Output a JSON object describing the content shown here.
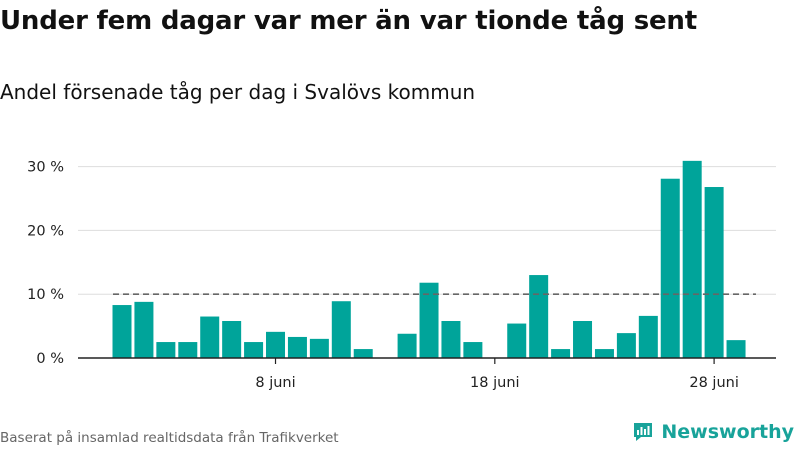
{
  "colors": {
    "bar": "#00a49a",
    "grid": "#dddddd",
    "axis": "#222222",
    "reference_line": "#666666",
    "brand": "#18a39a"
  },
  "chart_data": {
    "type": "bar",
    "title": "Under fem dagar var mer än var tionde tåg sent",
    "subtitle": "Andel försenade tåg per dag i Svalövs kommun",
    "ylim": [
      0,
      33
    ],
    "yticks": [
      0,
      10,
      20,
      30
    ],
    "ytick_labels": [
      "0 %",
      "10 %",
      "20 %",
      "30 %"
    ],
    "xticks": [
      {
        "day": 8,
        "label": "8 juni"
      },
      {
        "day": 18,
        "label": "18 juni"
      },
      {
        "day": 28,
        "label": "28 juni"
      }
    ],
    "days": [
      1,
      2,
      3,
      4,
      5,
      6,
      7,
      8,
      9,
      10,
      11,
      12,
      13,
      14,
      15,
      16,
      17,
      18,
      19,
      20,
      21,
      22,
      23,
      24,
      25,
      26,
      27,
      28,
      29,
      30
    ],
    "values": [
      8.3,
      8.8,
      2.5,
      2.5,
      6.5,
      5.8,
      2.5,
      4.1,
      3.3,
      3.0,
      8.9,
      1.4,
      null,
      3.8,
      11.8,
      5.8,
      2.5,
      0,
      5.4,
      13.0,
      1.4,
      5.8,
      1.4,
      3.9,
      6.6,
      28.1,
      30.9,
      26.8,
      2.8,
      0
    ],
    "reference_line": {
      "value": 10,
      "style": "dashed"
    },
    "grid": true
  },
  "footer": {
    "source": "Baserat på insamlad realtidsdata från Trafikverket",
    "brand": "Newsworthy",
    "brand_icon": "newsworthy-logo-icon"
  }
}
